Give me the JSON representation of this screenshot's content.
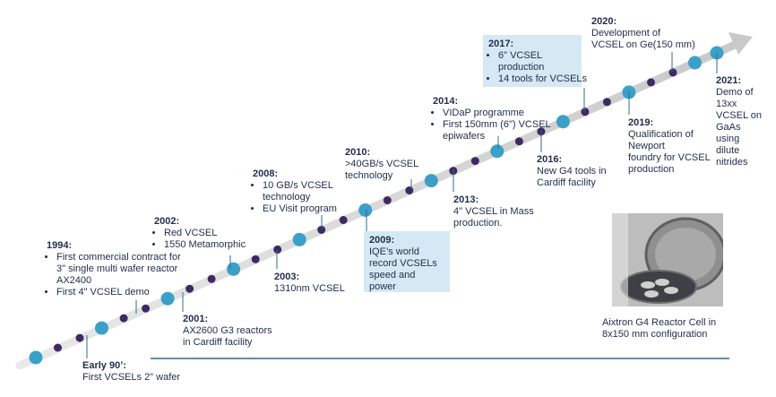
{
  "milestones": [
    {
      "id": "early90",
      "year": "Early 90’:",
      "lines": [
        "First VCSELs 2\" wafer"
      ],
      "bullets": false,
      "highlight": false
    },
    {
      "id": "1994",
      "year": "1994:",
      "lines": [
        "First commercial contract for\n3\" single multi wafer reactor\nAX2400",
        "First 4\" VCSEL demo"
      ],
      "bullets": true,
      "highlight": false
    },
    {
      "id": "2001",
      "year": "2001:",
      "lines": [
        "AX2600 G3 reactors\nin Cardiff facility"
      ],
      "bullets": false,
      "highlight": false
    },
    {
      "id": "2002",
      "year": "2002:",
      "lines": [
        "Red VCSEL",
        "1550 Metamorphic"
      ],
      "bullets": true,
      "highlight": false
    },
    {
      "id": "2003",
      "year": "2003:",
      "lines": [
        "1310nm VCSEL"
      ],
      "bullets": false,
      "highlight": false
    },
    {
      "id": "2008",
      "year": "2008:",
      "lines": [
        "10 GB/s VCSEL\ntechnology",
        "EU Visit program"
      ],
      "bullets": true,
      "highlight": false
    },
    {
      "id": "2009",
      "year": "2009:",
      "lines": [
        "IQE’s world\nrecord VCSELs\nspeed and\npower"
      ],
      "bullets": false,
      "highlight": true
    },
    {
      "id": "2010",
      "year": "2010:",
      "lines": [
        ">40GB/s VCSEL\ntechnology"
      ],
      "bullets": false,
      "highlight": false
    },
    {
      "id": "2013",
      "year": "2013:",
      "lines": [
        "4\" VCSEL in Mass\nproduction."
      ],
      "bullets": false,
      "highlight": false
    },
    {
      "id": "2014",
      "year": "2014:",
      "lines": [
        "VIDaP programme",
        "First 150mm (6\") VCSEL\nepiwafers"
      ],
      "bullets": true,
      "highlight": false
    },
    {
      "id": "2016",
      "year": "2016:",
      "lines": [
        "New G4 tools in\nCardiff facility"
      ],
      "bullets": false,
      "highlight": false
    },
    {
      "id": "2017",
      "year": "2017:",
      "lines": [
        "6\" VCSEL\nproduction",
        "14 tools for VCSELs"
      ],
      "bullets": true,
      "highlight": true
    },
    {
      "id": "2019",
      "year": "2019:",
      "lines": [
        "Qualification of\nNewport\nfoundry for VCSEL\nproduction"
      ],
      "bullets": false,
      "highlight": false
    },
    {
      "id": "2020",
      "year": "2020:",
      "lines": [
        "Development of\nVCSEL on Ge(150 mm)"
      ],
      "bullets": false,
      "highlight": false
    },
    {
      "id": "2021",
      "year": "2021:",
      "lines": [
        "Demo of\n13xx\nVCSEL on\nGaAs\nusing\ndilute\nnitrides"
      ],
      "bullets": false,
      "highlight": false
    }
  ],
  "photo": {
    "caption": "Aixtron G4 Reactor Cell in\n8x150 mm configuration"
  },
  "colors": {
    "teal": "#3ba0c8",
    "purple": "#3d2a62",
    "arrow": "#dcdcdc",
    "baseline": "#2c6d96",
    "highlight": "#d4e9f3",
    "text": "#1f2d4a"
  }
}
